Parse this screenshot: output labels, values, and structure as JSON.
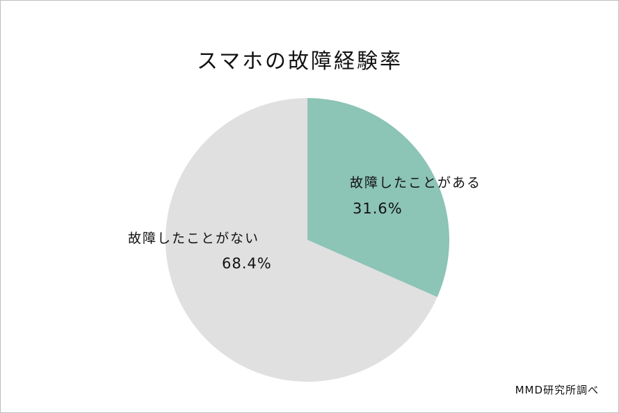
{
  "chart_data": {
    "type": "pie",
    "title": "スマホの故障経験率",
    "slices": [
      {
        "label": "故障したことがある",
        "value": 31.6,
        "value_label": "31.6%",
        "color": "#8cc4b6"
      },
      {
        "label": "故障したことがない",
        "value": 68.4,
        "value_label": "68.4%",
        "color": "#e0e0e0"
      }
    ],
    "start": "12 o'clock",
    "direction": "clockwise",
    "legend": "none"
  },
  "source": "MMD研究所調べ"
}
